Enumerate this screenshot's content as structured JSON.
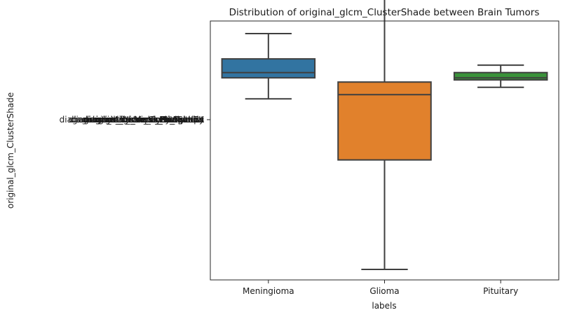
{
  "chart_data": {
    "type": "box",
    "title": "Distribution of original_glcm_ClusterShade between Brain Tumors",
    "xlabel": "labels",
    "ylabel": "original_glcm_ClusterShade",
    "categories": [
      "Meningioma",
      "Glioma",
      "Pituitary"
    ],
    "colors": [
      "#3274a1",
      "#e1812c",
      "#3a923a"
    ],
    "ylim": [
      -9.5,
      2.8
    ],
    "boxes": [
      {
        "label": "Meningioma",
        "whislo": -0.9,
        "q1": 0.1,
        "med": 0.35,
        "q3": 1.0,
        "whishi": 2.2
      },
      {
        "label": "Glioma",
        "whislo": -9.0,
        "q1": -3.8,
        "med": -0.7,
        "q3": -0.1,
        "whishi": 5.0
      },
      {
        "label": "Pituitary",
        "whislo": -0.35,
        "q1": 0.0,
        "med": 0.1,
        "q3": 0.35,
        "whishi": 0.7
      }
    ],
    "overlapping_tick_labels": [
      "diagnostics_Versions_PyRadiomics",
      "diagnostics_Versions_Numpy",
      "diagnostics_Versions_SimpleITK",
      "diagnostics_Versions_PyWavelet",
      "diagnostics_Versions_Python",
      "original_glcm_ClusterShade",
      "original_firstorder_Skewness",
      "original_shape_Elongation"
    ],
    "grid": false,
    "legend": "none"
  }
}
